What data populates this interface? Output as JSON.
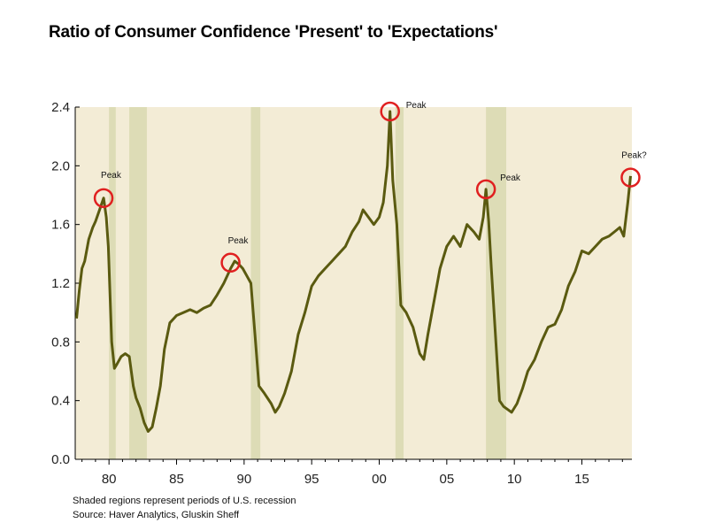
{
  "chart_data": {
    "type": "line",
    "title": "Ratio of Consumer Confidence 'Present' to 'Expectations'",
    "xlabel": "",
    "ylabel": "",
    "xlim": [
      1977.5,
      2018.7
    ],
    "ylim": [
      0,
      2.4
    ],
    "x_ticks": [
      {
        "value": 1980,
        "label": "80"
      },
      {
        "value": 1985,
        "label": "85"
      },
      {
        "value": 1990,
        "label": "90"
      },
      {
        "value": 1995,
        "label": "95"
      },
      {
        "value": 2000,
        "label": "00"
      },
      {
        "value": 2005,
        "label": "05"
      },
      {
        "value": 2010,
        "label": "10"
      },
      {
        "value": 2015,
        "label": "15"
      }
    ],
    "y_ticks": [
      {
        "value": 0.0,
        "label": "0.0"
      },
      {
        "value": 0.4,
        "label": "0.4"
      },
      {
        "value": 0.8,
        "label": "0.8"
      },
      {
        "value": 1.2,
        "label": "1.2"
      },
      {
        "value": 1.6,
        "label": "1.6"
      },
      {
        "value": 2.0,
        "label": "2.0"
      },
      {
        "value": 2.4,
        "label": "2.4"
      }
    ],
    "grid": false,
    "recessions": [
      {
        "start": 1980.0,
        "end": 1980.5
      },
      {
        "start": 1981.5,
        "end": 1982.8
      },
      {
        "start": 1990.5,
        "end": 1991.2
      },
      {
        "start": 2001.2,
        "end": 2001.8
      },
      {
        "start": 2007.9,
        "end": 2009.4
      }
    ],
    "colors": {
      "line": "#5a5a10",
      "plot_background": "#f3ecd6",
      "recession_band": "#dddcb6",
      "peak_circle": "#e02020"
    },
    "series": [
      {
        "name": "",
        "x": [
          1977.6,
          1977.8,
          1978.0,
          1978.2,
          1978.5,
          1978.8,
          1979.0,
          1979.3,
          1979.6,
          1979.8,
          1979.95,
          1980.2,
          1980.4,
          1980.6,
          1980.9,
          1981.2,
          1981.5,
          1981.8,
          1982.0,
          1982.3,
          1982.6,
          1982.9,
          1983.2,
          1983.5,
          1983.8,
          1984.1,
          1984.5,
          1985.0,
          1985.5,
          1986.0,
          1986.5,
          1987.0,
          1987.5,
          1988.0,
          1988.5,
          1989.0,
          1989.3,
          1989.6,
          1989.9,
          1990.2,
          1990.5,
          1990.8,
          1991.1,
          1991.5,
          1992.0,
          1992.3,
          1992.6,
          1993.0,
          1993.5,
          1994.0,
          1994.5,
          1995.0,
          1995.5,
          1996.0,
          1996.5,
          1997.0,
          1997.5,
          1998.0,
          1998.5,
          1998.8,
          1999.2,
          1999.6,
          2000.0,
          2000.3,
          2000.6,
          2000.8,
          2001.0,
          2001.3,
          2001.6,
          2002.0,
          2002.5,
          2003.0,
          2003.3,
          2003.6,
          2004.0,
          2004.5,
          2005.0,
          2005.5,
          2006.0,
          2006.5,
          2007.0,
          2007.4,
          2007.7,
          2007.9,
          2008.1,
          2008.3,
          2008.6,
          2008.9,
          2009.2,
          2009.5,
          2009.8,
          2010.2,
          2010.6,
          2011.0,
          2011.5,
          2012.0,
          2012.5,
          2013.0,
          2013.5,
          2014.0,
          2014.5,
          2015.0,
          2015.5,
          2016.0,
          2016.5,
          2017.0,
          2017.4,
          2017.8,
          2018.1,
          2018.4,
          2018.6
        ],
        "values": [
          0.96,
          1.15,
          1.3,
          1.35,
          1.5,
          1.58,
          1.62,
          1.7,
          1.78,
          1.65,
          1.45,
          0.8,
          0.62,
          0.65,
          0.7,
          0.72,
          0.7,
          0.5,
          0.42,
          0.35,
          0.25,
          0.19,
          0.22,
          0.35,
          0.5,
          0.75,
          0.93,
          0.98,
          1.0,
          1.02,
          1.0,
          1.03,
          1.05,
          1.12,
          1.2,
          1.3,
          1.35,
          1.33,
          1.3,
          1.25,
          1.2,
          0.85,
          0.5,
          0.45,
          0.38,
          0.32,
          0.36,
          0.45,
          0.6,
          0.85,
          1.0,
          1.18,
          1.25,
          1.3,
          1.35,
          1.4,
          1.45,
          1.55,
          1.62,
          1.7,
          1.65,
          1.6,
          1.65,
          1.75,
          2.0,
          2.37,
          1.9,
          1.6,
          1.05,
          1.0,
          0.9,
          0.72,
          0.68,
          0.85,
          1.05,
          1.3,
          1.45,
          1.52,
          1.45,
          1.6,
          1.55,
          1.5,
          1.65,
          1.84,
          1.62,
          1.3,
          0.85,
          0.4,
          0.36,
          0.34,
          0.32,
          0.38,
          0.48,
          0.6,
          0.68,
          0.8,
          0.9,
          0.92,
          1.02,
          1.18,
          1.28,
          1.42,
          1.4,
          1.45,
          1.5,
          1.52,
          1.55,
          1.58,
          1.52,
          1.75,
          1.93
        ]
      }
    ],
    "annotations": [
      {
        "text": "Peak",
        "x": 1979.6,
        "y": 1.78
      },
      {
        "text": "Peak",
        "x": 1989.0,
        "y": 1.34
      },
      {
        "text": "Peak",
        "x": 2000.8,
        "y": 2.37
      },
      {
        "text": "Peak",
        "x": 2007.9,
        "y": 1.84
      },
      {
        "text": "Peak?",
        "x": 2018.6,
        "y": 1.92
      }
    ]
  },
  "notes": {
    "recession": "Shaded regions represent periods of U.S. recession",
    "source": "Source: Haver Analytics, Gluskin Sheff"
  }
}
